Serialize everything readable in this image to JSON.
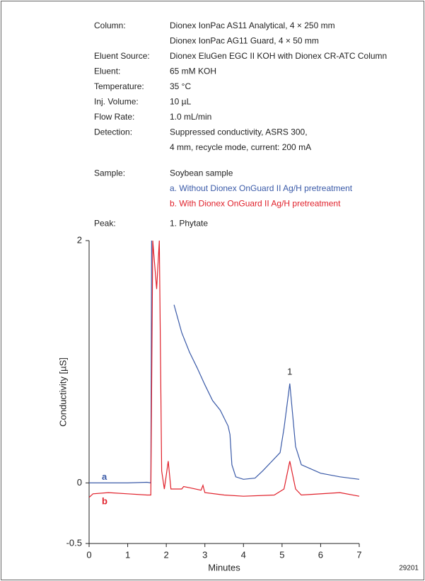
{
  "conditions": [
    {
      "label": "Column:",
      "lines": [
        "Dionex IonPac AS11 Analytical, 4 × 250 mm",
        "Dionex IonPac AG11 Guard, 4 × 50 mm"
      ]
    },
    {
      "label": "Eluent Source:",
      "lines": [
        "Dionex EluGen EGC II KOH with Dionex CR-ATC Column"
      ]
    },
    {
      "label": "Eluent:",
      "lines": [
        "65 mM KOH"
      ]
    },
    {
      "label": "Temperature:",
      "lines": [
        "35 °C"
      ]
    },
    {
      "label": "Inj. Volume:",
      "lines": [
        "10 µL"
      ]
    },
    {
      "label": "Flow Rate:",
      "lines": [
        "1.0 mL/min"
      ]
    },
    {
      "label": "Detection:",
      "lines": [
        "Suppressed conductivity, ASRS 300,",
        "4 mm, recycle mode, current: 200 mA"
      ]
    },
    {
      "label": "Sample:",
      "lines": [
        {
          "text": "Soybean sample"
        },
        {
          "text": "a. Without Dionex OnGuard II Ag/H pretreatment",
          "color": "#3a5aa8"
        },
        {
          "text": "b. With Dionex OnGuard II Ag/H pretreatment",
          "color": "#e0202a"
        }
      ]
    },
    {
      "label": "Peak:",
      "lines": [
        "1. Phytate"
      ]
    }
  ],
  "figure_number": "29201",
  "chart_data": {
    "type": "line",
    "xlabel": "Minutes",
    "ylabel": "Conductivity [µS]",
    "xlim": [
      0,
      7
    ],
    "xticks": [
      0,
      1,
      2,
      3,
      4,
      5,
      6,
      7
    ],
    "ylim": [
      -0.5,
      2
    ],
    "yticks": [
      -0.5,
      0,
      2
    ],
    "annotations": [
      {
        "text": "1",
        "x": 5.2
      }
    ],
    "series": [
      {
        "name": "a",
        "color": "#3a5aa8",
        "x": [
          0,
          0.5,
          1.0,
          1.5,
          1.6,
          1.62,
          2.06,
          2.2,
          2.4,
          2.6,
          2.8,
          3.0,
          3.2,
          3.4,
          3.6,
          3.65,
          3.7,
          3.8,
          4.0,
          4.3,
          4.5,
          4.8,
          4.95,
          5.05,
          5.2,
          5.35,
          5.5,
          6.0,
          6.5,
          7.0
        ],
        "values": [
          0.0,
          0.0,
          0.0,
          0.005,
          0.0,
          2,
          null,
          1.47,
          1.24,
          1.08,
          0.95,
          0.81,
          0.68,
          0.6,
          0.47,
          0.4,
          0.15,
          0.05,
          0.03,
          0.04,
          0.1,
          0.2,
          0.25,
          0.45,
          0.82,
          0.3,
          0.15,
          0.08,
          0.05,
          0.03
        ]
      },
      {
        "name": "b",
        "color": "#e0202a",
        "x": [
          0,
          0.1,
          0.5,
          1.0,
          1.5,
          1.6,
          1.65,
          1.75,
          1.82,
          1.88,
          1.95,
          2.05,
          2.12,
          2.4,
          2.45,
          2.6,
          2.9,
          2.95,
          3.0,
          3.5,
          4.0,
          4.8,
          5.05,
          5.2,
          5.35,
          5.5,
          6.5,
          7.0
        ],
        "values": [
          -0.12,
          -0.09,
          -0.08,
          -0.09,
          -0.1,
          -0.1,
          2,
          1.6,
          2,
          0.1,
          -0.05,
          0.18,
          -0.05,
          -0.05,
          -0.03,
          -0.04,
          -0.06,
          -0.02,
          -0.08,
          -0.1,
          -0.11,
          -0.1,
          -0.05,
          0.18,
          -0.05,
          -0.1,
          -0.08,
          -0.11
        ]
      }
    ]
  }
}
